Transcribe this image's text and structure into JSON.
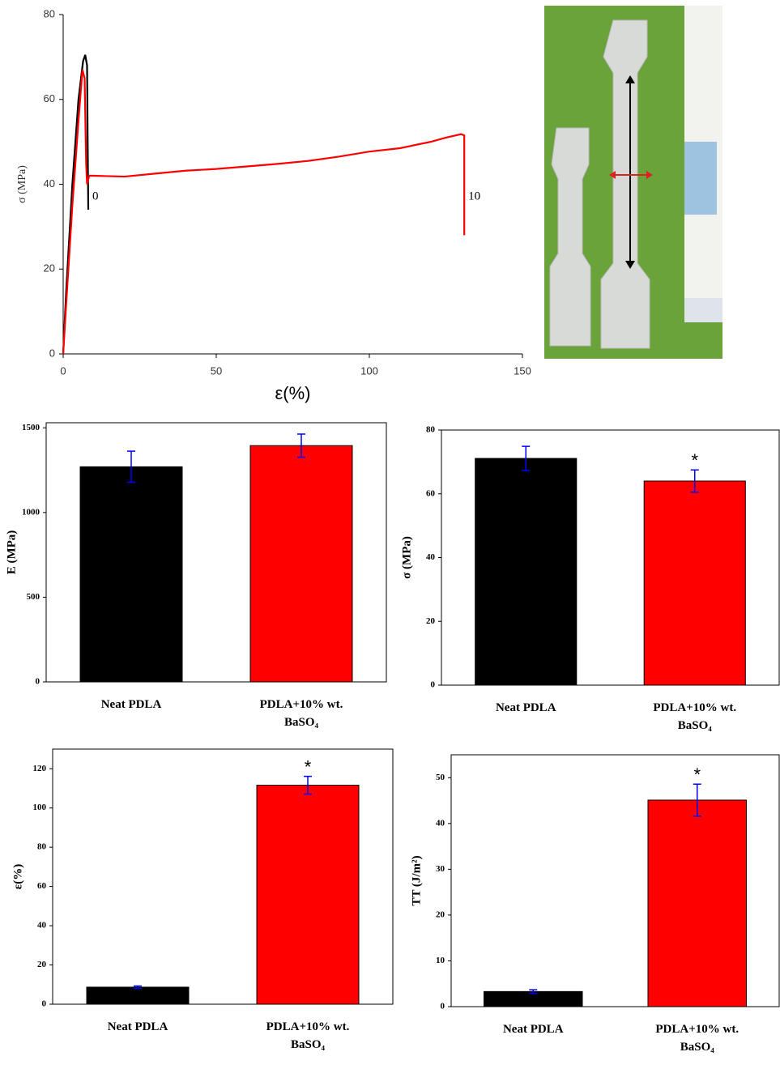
{
  "chart_data": [
    {
      "type": "line",
      "xlabel": "ε(%)",
      "ylabel": "σ (MPa)",
      "xlim": [
        0,
        150
      ],
      "ylim": [
        0,
        80
      ],
      "xticks": [
        0,
        50,
        100,
        150
      ],
      "yticks": [
        0,
        20,
        40,
        60,
        80
      ],
      "series": [
        {
          "name": "0",
          "color": "#000000",
          "x": [
            0,
            1,
            3,
            5,
            6.5,
            7.2,
            7.8,
            8,
            8.2
          ],
          "values": [
            0,
            15,
            40,
            60,
            69,
            70.5,
            68,
            50,
            34
          ]
        },
        {
          "name": "10",
          "color": "#ff0000",
          "x": [
            0,
            1,
            3,
            5,
            6.3,
            7,
            7.5,
            7.8,
            8.5,
            10,
            20,
            30,
            40,
            50,
            60,
            70,
            80,
            90,
            100,
            110,
            120,
            125,
            130,
            131,
            131
          ],
          "values": [
            0,
            12,
            35,
            55,
            67,
            65,
            45,
            40,
            42,
            42,
            41.8,
            42.5,
            43.2,
            43.6,
            44.2,
            44.8,
            45.5,
            46.5,
            47.7,
            48.5,
            50,
            51,
            51.8,
            51.5,
            28
          ]
        }
      ]
    },
    {
      "type": "bar",
      "ylabel": "E (MPa)",
      "categories": [
        "Neat PDLA",
        "PDLA+10% wt. BaSO₄"
      ],
      "values": [
        1270,
        1395
      ],
      "errors": [
        92,
        68
      ],
      "colors": [
        "#000000",
        "#ff0000"
      ],
      "error_color": "#0000ff",
      "ylim": [
        0,
        1530
      ],
      "yticks": [
        0,
        500,
        1000,
        1500
      ],
      "annotations": []
    },
    {
      "type": "bar",
      "ylabel": "σ (MPa)",
      "categories": [
        "Neat PDLA",
        "PDLA+10% wt. BaSO₄"
      ],
      "values": [
        71.1,
        64
      ],
      "errors": [
        3.8,
        3.5
      ],
      "colors": [
        "#000000",
        "#ff0000"
      ],
      "error_color": "#0000ff",
      "ylim": [
        0,
        80
      ],
      "yticks": [
        0,
        20,
        40,
        60,
        80
      ],
      "annotations": [
        {
          "category": "PDLA+10% wt. BaSO₄",
          "text": "*"
        }
      ]
    },
    {
      "type": "bar",
      "ylabel": "ε(%)",
      "categories": [
        "Neat PDLA",
        "PDLA+10% wt. BaSO₄"
      ],
      "values": [
        8.7,
        111.6
      ],
      "errors": [
        0.6,
        4.5
      ],
      "colors": [
        "#000000",
        "#ff0000"
      ],
      "error_color": "#0000ff",
      "ylim": [
        0,
        130
      ],
      "yticks": [
        0,
        20,
        40,
        60,
        80,
        100,
        120
      ],
      "annotations": [
        {
          "category": "PDLA+10% wt. BaSO₄",
          "text": "*"
        }
      ]
    },
    {
      "type": "bar",
      "ylabel": "TT (J/m²)",
      "categories": [
        "Neat PDLA",
        "PDLA+10% wt. BaSO₄"
      ],
      "values": [
        3.3,
        45.1
      ],
      "errors": [
        0.4,
        3.5
      ],
      "colors": [
        "#000000",
        "#ff0000"
      ],
      "error_color": "#0000ff",
      "ylim": [
        0,
        55
      ],
      "yticks": [
        0,
        10,
        20,
        30,
        40,
        50
      ],
      "annotations": [
        {
          "category": "PDLA+10% wt. BaSO₄",
          "text": "*"
        }
      ]
    }
  ]
}
